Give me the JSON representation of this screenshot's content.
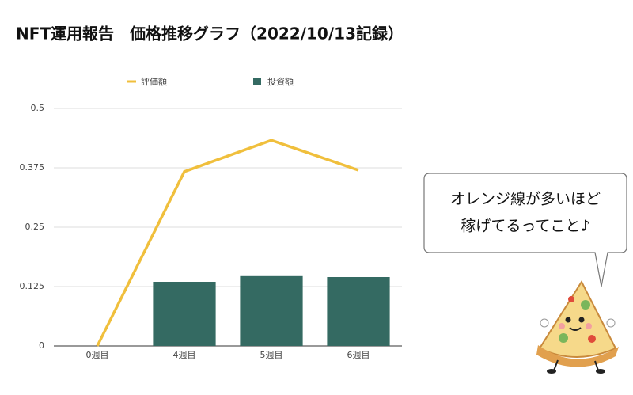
{
  "chart_data": {
    "type": "bar",
    "title": "NFT運用報告　価格推移グラフ（2022/10/13記録）",
    "categories": [
      "0週目",
      "4週目",
      "5週目",
      "6週目"
    ],
    "series": [
      {
        "name": "評価額",
        "type": "line",
        "color": "#f0bf3c",
        "values": [
          0,
          0.367,
          0.433,
          0.37
        ]
      },
      {
        "name": "投資額",
        "type": "bar",
        "color": "#346a62",
        "values": [
          0,
          0.135,
          0.147,
          0.145
        ]
      }
    ],
    "ylim": [
      0,
      0.5
    ],
    "yticks": [
      0,
      0.125,
      0.25,
      0.375,
      0.5
    ],
    "grid": true,
    "legend": "top",
    "annotation": [
      "オレンジ線が多いほど",
      "稼げてるってこと♪"
    ]
  }
}
